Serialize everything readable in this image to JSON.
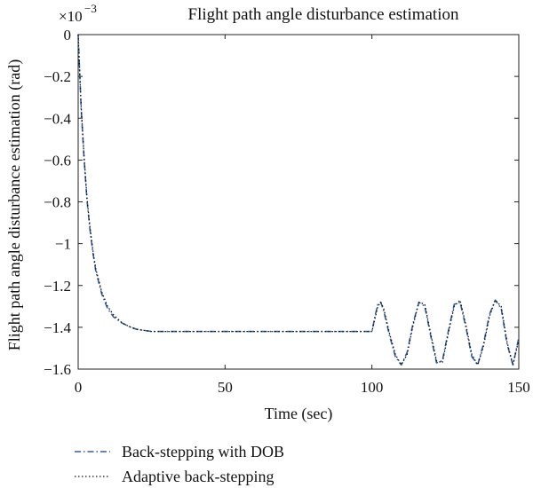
{
  "chart_data": {
    "type": "line",
    "title": "Flight path angle disturbance estimation",
    "xlabel": "Time (sec)",
    "ylabel": "Flight path angle disturbance estimation (rad)",
    "y_multiplier": "×10",
    "y_exponent": "−3",
    "xlim": [
      0,
      150
    ],
    "ylim": [
      -1.6,
      0
    ],
    "xticks": [
      0,
      50,
      100,
      150
    ],
    "xtick_labels": [
      "0",
      "50",
      "100",
      "150"
    ],
    "yticks": [
      0,
      -0.2,
      -0.4,
      -0.6,
      -0.8,
      -1,
      -1.2,
      -1.4,
      -1.6
    ],
    "ytick_labels": [
      "0",
      "−0.2",
      "−0.4",
      "−0.6",
      "−0.8",
      "−1",
      "−1.2",
      "−1.4",
      "−1.6"
    ],
    "grid": false,
    "legend_placement": "below-left",
    "series": [
      {
        "name": "Back-stepping with DOB",
        "color": "#2e5fa8",
        "style": "dash-dot",
        "x": [
          0,
          1,
          2,
          3,
          4,
          5,
          6,
          8,
          10,
          12,
          15,
          18,
          20,
          25,
          30,
          40,
          50,
          60,
          70,
          80,
          90,
          100,
          101,
          102,
          103,
          104,
          106,
          108,
          110,
          112,
          114,
          116,
          118,
          120,
          122,
          124,
          126,
          128,
          130,
          132,
          134,
          136,
          138,
          140,
          142,
          144,
          146,
          148,
          150
        ],
        "values": [
          0,
          -0.35,
          -0.59,
          -0.79,
          -0.93,
          -1.04,
          -1.13,
          -1.24,
          -1.31,
          -1.35,
          -1.38,
          -1.4,
          -1.41,
          -1.42,
          -1.42,
          -1.42,
          -1.42,
          -1.42,
          -1.42,
          -1.42,
          -1.42,
          -1.42,
          -1.35,
          -1.29,
          -1.28,
          -1.32,
          -1.44,
          -1.54,
          -1.58,
          -1.52,
          -1.38,
          -1.28,
          -1.3,
          -1.44,
          -1.57,
          -1.56,
          -1.42,
          -1.29,
          -1.28,
          -1.4,
          -1.54,
          -1.58,
          -1.48,
          -1.34,
          -1.27,
          -1.31,
          -1.48,
          -1.58,
          -1.45
        ]
      },
      {
        "name": "Adaptive back-stepping",
        "color": "#111111",
        "style": "dotted",
        "x": [
          0,
          1,
          2,
          3,
          4,
          5,
          6,
          8,
          10,
          12,
          15,
          18,
          20,
          25,
          30,
          40,
          50,
          60,
          70,
          80,
          90,
          100,
          101,
          102,
          103,
          104,
          106,
          108,
          110,
          112,
          114,
          116,
          118,
          120,
          122,
          124,
          126,
          128,
          130,
          132,
          134,
          136,
          138,
          140,
          142,
          144,
          146,
          148,
          150
        ],
        "values": [
          0,
          -0.34,
          -0.58,
          -0.78,
          -0.92,
          -1.03,
          -1.12,
          -1.23,
          -1.3,
          -1.34,
          -1.38,
          -1.4,
          -1.41,
          -1.42,
          -1.42,
          -1.42,
          -1.42,
          -1.42,
          -1.42,
          -1.42,
          -1.42,
          -1.42,
          -1.36,
          -1.3,
          -1.28,
          -1.31,
          -1.43,
          -1.53,
          -1.58,
          -1.53,
          -1.39,
          -1.28,
          -1.29,
          -1.43,
          -1.56,
          -1.57,
          -1.43,
          -1.3,
          -1.27,
          -1.39,
          -1.53,
          -1.58,
          -1.49,
          -1.35,
          -1.27,
          -1.3,
          -1.47,
          -1.58,
          -1.46
        ]
      }
    ]
  }
}
